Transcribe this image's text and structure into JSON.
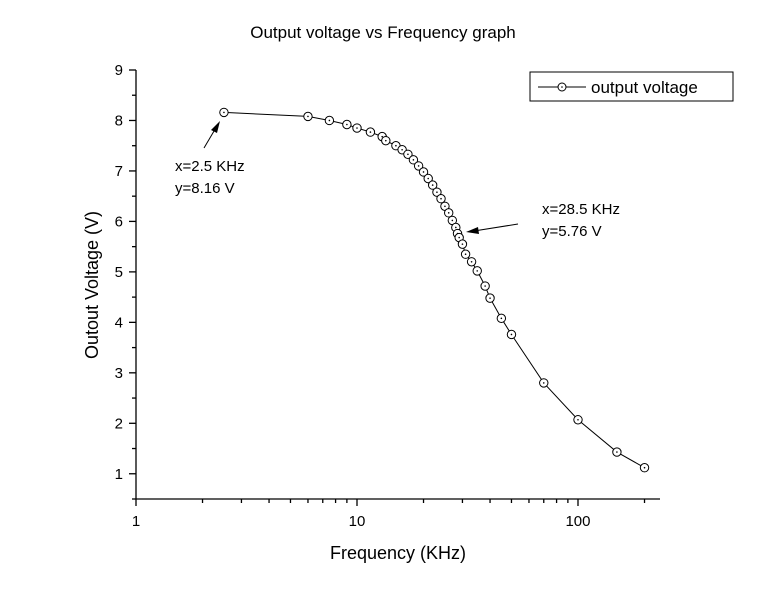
{
  "chart_data": {
    "type": "line",
    "title": "Output voltage vs Frequency graph",
    "xlabel": "Frequency (KHz)",
    "ylabel": "Outout Voltage (V)",
    "xscale": "log",
    "xlim": [
      1,
      235
    ],
    "ylim": [
      0.5,
      9
    ],
    "xticks": [
      "1",
      "10",
      "100"
    ],
    "yticks": [
      "1",
      "2",
      "3",
      "4",
      "5",
      "6",
      "7",
      "8",
      "9"
    ],
    "grid": false,
    "legend_position": "top-right",
    "series": [
      {
        "name": "output voltage",
        "marker": "circle-dot",
        "color": "#000000",
        "x": [
          2.5,
          6,
          7.5,
          9,
          10,
          11.5,
          13,
          13.5,
          15,
          16,
          17,
          18,
          19,
          20,
          21,
          22,
          23,
          24,
          25,
          26,
          27,
          28,
          28.5,
          29,
          30,
          31,
          33,
          35,
          38,
          40,
          45,
          50,
          70,
          100,
          150,
          200
        ],
        "y": [
          8.16,
          8.08,
          8.0,
          7.92,
          7.85,
          7.77,
          7.68,
          7.6,
          7.5,
          7.42,
          7.33,
          7.22,
          7.1,
          6.98,
          6.85,
          6.72,
          6.58,
          6.45,
          6.3,
          6.17,
          6.02,
          5.88,
          5.76,
          5.68,
          5.55,
          5.35,
          5.2,
          5.02,
          4.72,
          4.48,
          4.08,
          3.76,
          2.8,
          2.07,
          1.43,
          1.12
        ]
      }
    ],
    "annotations": [
      {
        "lines": [
          "x=2.5 KHz",
          "y=8.16 V"
        ],
        "x": 2.5,
        "y": 8.16
      },
      {
        "lines": [
          "x=28.5 KHz",
          "y=5.76 V"
        ],
        "x": 28.5,
        "y": 5.76
      }
    ]
  }
}
